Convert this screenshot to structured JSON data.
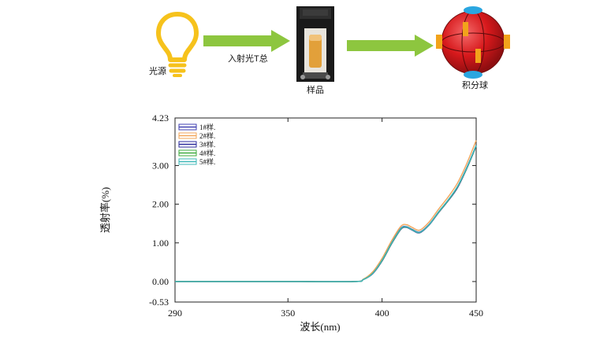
{
  "diagram": {
    "light_source_label": "光源",
    "incident_label": "入射光T总",
    "sample_label": "样品",
    "sphere_label": "积分球",
    "arrow_color": "#8DC63F",
    "bulb_color": "#F6C21C",
    "sphere_color": "#D7191C"
  },
  "chart_data": {
    "type": "line",
    "xlabel": "波长(nm)",
    "ylabel": "透射率(%)",
    "xlim": [
      290,
      450
    ],
    "ylim": [
      -0.53,
      4.23
    ],
    "xticks": [
      "290",
      "350",
      "400",
      "450"
    ],
    "yticks": [
      "4.23",
      "3.00",
      "2.00",
      "1.00",
      "0.00",
      "-0.53"
    ],
    "ytick_values": [
      4.23,
      3.0,
      2.0,
      1.0,
      0.0,
      -0.53
    ],
    "xtick_values": [
      290,
      350,
      400,
      450
    ],
    "legend_position": "top-left",
    "series": [
      {
        "name": "1#样.",
        "color": "#3F3FB0",
        "x": [
          290,
          350,
          385,
          390,
          395,
          400,
          405,
          410,
          413,
          416,
          420,
          425,
          430,
          435,
          440,
          445,
          450
        ],
        "y": [
          0.0,
          0.0,
          0.0,
          0.05,
          0.22,
          0.55,
          1.0,
          1.38,
          1.42,
          1.35,
          1.28,
          1.48,
          1.8,
          2.1,
          2.45,
          2.95,
          3.52
        ]
      },
      {
        "name": "2#样.",
        "color": "#F2A65A",
        "x": [
          290,
          350,
          385,
          390,
          395,
          400,
          405,
          410,
          413,
          416,
          420,
          425,
          430,
          435,
          440,
          445,
          450
        ],
        "y": [
          0.0,
          0.0,
          0.0,
          0.06,
          0.25,
          0.6,
          1.05,
          1.43,
          1.47,
          1.4,
          1.33,
          1.54,
          1.87,
          2.18,
          2.54,
          3.05,
          3.65
        ]
      },
      {
        "name": "3#样.",
        "color": "#2E2E9C",
        "x": [
          290,
          350,
          385,
          390,
          395,
          400,
          405,
          410,
          413,
          416,
          420,
          425,
          430,
          435,
          440,
          445,
          450
        ],
        "y": [
          0.0,
          0.0,
          0.0,
          0.05,
          0.2,
          0.53,
          0.97,
          1.35,
          1.4,
          1.33,
          1.26,
          1.46,
          1.78,
          2.08,
          2.42,
          2.92,
          3.5
        ]
      },
      {
        "name": "4#样.",
        "color": "#3DAA3D",
        "x": [
          290,
          350,
          385,
          390,
          395,
          400,
          405,
          410,
          413,
          416,
          420,
          425,
          430,
          435,
          440,
          445,
          450
        ],
        "y": [
          0.0,
          0.0,
          0.0,
          0.05,
          0.21,
          0.54,
          0.98,
          1.36,
          1.41,
          1.34,
          1.27,
          1.47,
          1.79,
          2.09,
          2.44,
          2.93,
          3.51
        ]
      },
      {
        "name": "5#样.",
        "color": "#3FB8B8",
        "x": [
          290,
          350,
          385,
          390,
          395,
          400,
          405,
          410,
          413,
          416,
          420,
          425,
          430,
          435,
          440,
          445,
          450
        ],
        "y": [
          0.0,
          0.0,
          0.0,
          0.05,
          0.21,
          0.55,
          0.99,
          1.37,
          1.41,
          1.34,
          1.27,
          1.47,
          1.8,
          2.1,
          2.45,
          2.94,
          3.52
        ]
      }
    ]
  }
}
